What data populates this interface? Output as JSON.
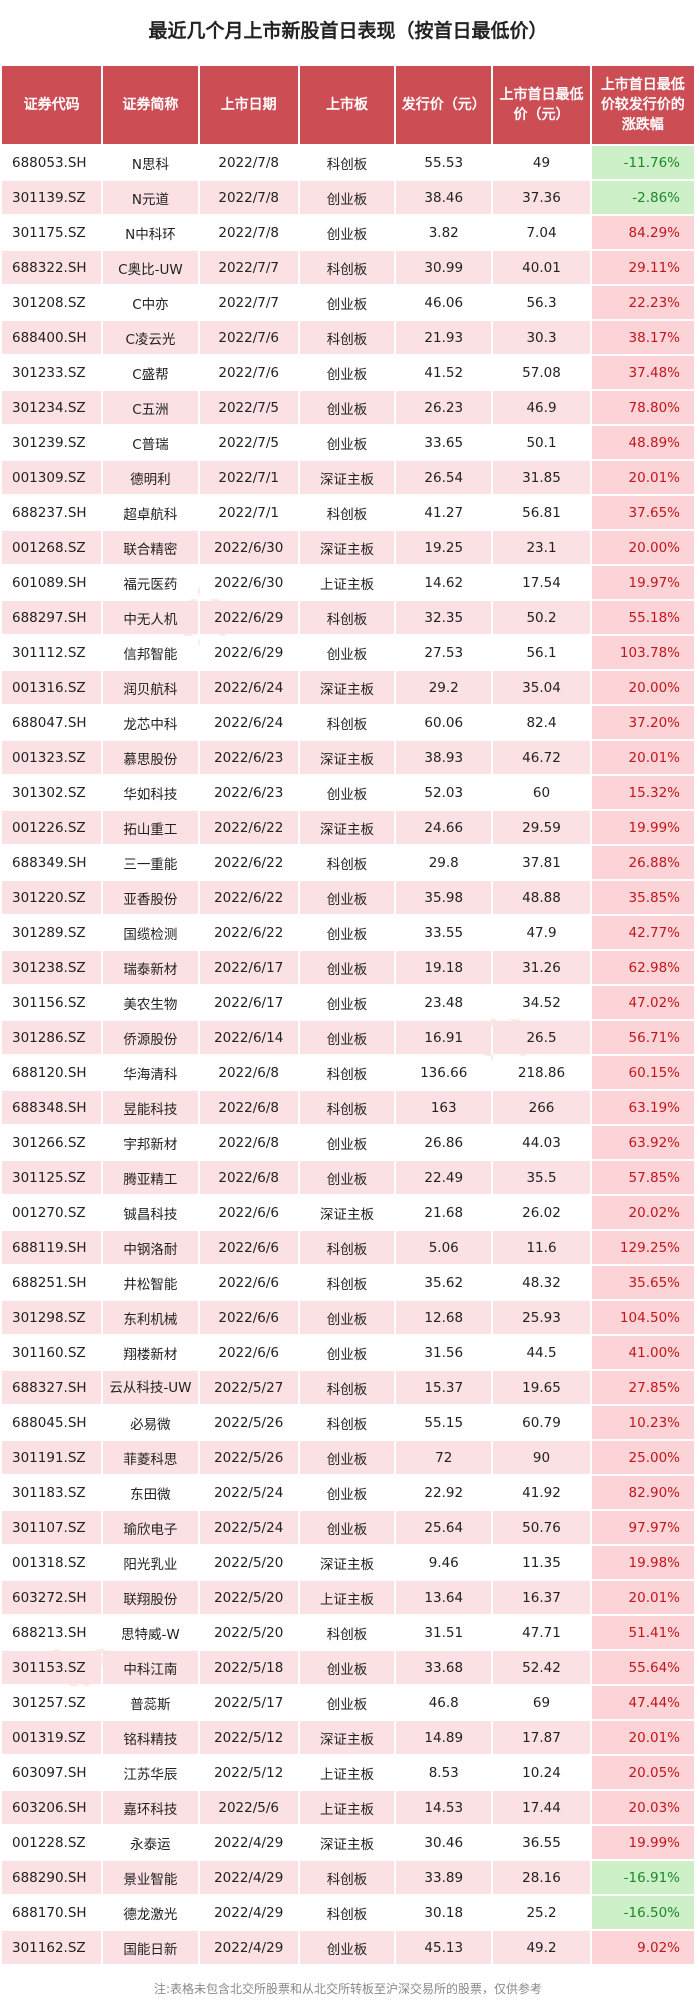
{
  "title": "最近几个月上市新股首日表现（按首日最低价）",
  "headers": [
    "证券代码",
    "证券简称",
    "上市日期",
    "上市板",
    "发行价（元）",
    "上市首日最低价（元）",
    "上市首日最低价较发行价的涨跌幅"
  ],
  "rows": [
    {
      "code": "688053.SH",
      "name": "N思科",
      "date": "2022/7/8",
      "board": "科创板",
      "issue": "55.53",
      "low": "49",
      "change": "-11.76%"
    },
    {
      "code": "301139.SZ",
      "name": "N元道",
      "date": "2022/7/8",
      "board": "创业板",
      "issue": "38.46",
      "low": "37.36",
      "change": "-2.86%"
    },
    {
      "code": "301175.SZ",
      "name": "N中科环",
      "date": "2022/7/8",
      "board": "创业板",
      "issue": "3.82",
      "low": "7.04",
      "change": "84.29%"
    },
    {
      "code": "688322.SH",
      "name": "C奥比-UW",
      "date": "2022/7/7",
      "board": "科创板",
      "issue": "30.99",
      "low": "40.01",
      "change": "29.11%"
    },
    {
      "code": "301208.SZ",
      "name": "C中亦",
      "date": "2022/7/7",
      "board": "创业板",
      "issue": "46.06",
      "low": "56.3",
      "change": "22.23%"
    },
    {
      "code": "688400.SH",
      "name": "C凌云光",
      "date": "2022/7/6",
      "board": "科创板",
      "issue": "21.93",
      "low": "30.3",
      "change": "38.17%"
    },
    {
      "code": "301233.SZ",
      "name": "C盛帮",
      "date": "2022/7/6",
      "board": "创业板",
      "issue": "41.52",
      "low": "57.08",
      "change": "37.48%"
    },
    {
      "code": "301234.SZ",
      "name": "C五洲",
      "date": "2022/7/5",
      "board": "创业板",
      "issue": "26.23",
      "low": "46.9",
      "change": "78.80%"
    },
    {
      "code": "301239.SZ",
      "name": "C普瑞",
      "date": "2022/7/5",
      "board": "创业板",
      "issue": "33.65",
      "low": "50.1",
      "change": "48.89%"
    },
    {
      "code": "001309.SZ",
      "name": "德明利",
      "date": "2022/7/1",
      "board": "深证主板",
      "issue": "26.54",
      "low": "31.85",
      "change": "20.01%"
    },
    {
      "code": "688237.SH",
      "name": "超卓航科",
      "date": "2022/7/1",
      "board": "科创板",
      "issue": "41.27",
      "low": "56.81",
      "change": "37.65%"
    },
    {
      "code": "001268.SZ",
      "name": "联合精密",
      "date": "2022/6/30",
      "board": "深证主板",
      "issue": "19.25",
      "low": "23.1",
      "change": "20.00%"
    },
    {
      "code": "601089.SH",
      "name": "福元医药",
      "date": "2022/6/30",
      "board": "上证主板",
      "issue": "14.62",
      "low": "17.54",
      "change": "19.97%"
    },
    {
      "code": "688297.SH",
      "name": "中无人机",
      "date": "2022/6/29",
      "board": "科创板",
      "issue": "32.35",
      "low": "50.2",
      "change": "55.18%"
    },
    {
      "code": "301112.SZ",
      "name": "信邦智能",
      "date": "2022/6/29",
      "board": "创业板",
      "issue": "27.53",
      "low": "56.1",
      "change": "103.78%"
    },
    {
      "code": "001316.SZ",
      "name": "润贝航科",
      "date": "2022/6/24",
      "board": "深证主板",
      "issue": "29.2",
      "low": "35.04",
      "change": "20.00%"
    },
    {
      "code": "688047.SH",
      "name": "龙芯中科",
      "date": "2022/6/24",
      "board": "科创板",
      "issue": "60.06",
      "low": "82.4",
      "change": "37.20%"
    },
    {
      "code": "001323.SZ",
      "name": "慕思股份",
      "date": "2022/6/23",
      "board": "深证主板",
      "issue": "38.93",
      "low": "46.72",
      "change": "20.01%"
    },
    {
      "code": "301302.SZ",
      "name": "华如科技",
      "date": "2022/6/23",
      "board": "创业板",
      "issue": "52.03",
      "low": "60",
      "change": "15.32%"
    },
    {
      "code": "001226.SZ",
      "name": "拓山重工",
      "date": "2022/6/22",
      "board": "深证主板",
      "issue": "24.66",
      "low": "29.59",
      "change": "19.99%"
    },
    {
      "code": "688349.SH",
      "name": "三一重能",
      "date": "2022/6/22",
      "board": "科创板",
      "issue": "29.8",
      "low": "37.81",
      "change": "26.88%"
    },
    {
      "code": "301220.SZ",
      "name": "亚香股份",
      "date": "2022/6/22",
      "board": "创业板",
      "issue": "35.98",
      "low": "48.88",
      "change": "35.85%"
    },
    {
      "code": "301289.SZ",
      "name": "国缆检测",
      "date": "2022/6/22",
      "board": "创业板",
      "issue": "33.55",
      "low": "47.9",
      "change": "42.77%"
    },
    {
      "code": "301238.SZ",
      "name": "瑞泰新材",
      "date": "2022/6/17",
      "board": "创业板",
      "issue": "19.18",
      "low": "31.26",
      "change": "62.98%"
    },
    {
      "code": "301156.SZ",
      "name": "美农生物",
      "date": "2022/6/17",
      "board": "创业板",
      "issue": "23.48",
      "low": "34.52",
      "change": "47.02%"
    },
    {
      "code": "301286.SZ",
      "name": "侨源股份",
      "date": "2022/6/14",
      "board": "创业板",
      "issue": "16.91",
      "low": "26.5",
      "change": "56.71%"
    },
    {
      "code": "688120.SH",
      "name": "华海清科",
      "date": "2022/6/8",
      "board": "科创板",
      "issue": "136.66",
      "low": "218.86",
      "change": "60.15%"
    },
    {
      "code": "688348.SH",
      "name": "昱能科技",
      "date": "2022/6/8",
      "board": "科创板",
      "issue": "163",
      "low": "266",
      "change": "63.19%"
    },
    {
      "code": "301266.SZ",
      "name": "宇邦新材",
      "date": "2022/6/8",
      "board": "创业板",
      "issue": "26.86",
      "low": "44.03",
      "change": "63.92%"
    },
    {
      "code": "301125.SZ",
      "name": "腾亚精工",
      "date": "2022/6/8",
      "board": "创业板",
      "issue": "22.49",
      "low": "35.5",
      "change": "57.85%"
    },
    {
      "code": "001270.SZ",
      "name": "铖昌科技",
      "date": "2022/6/6",
      "board": "深证主板",
      "issue": "21.68",
      "low": "26.02",
      "change": "20.02%"
    },
    {
      "code": "688119.SH",
      "name": "中钢洛耐",
      "date": "2022/6/6",
      "board": "科创板",
      "issue": "5.06",
      "low": "11.6",
      "change": "129.25%"
    },
    {
      "code": "688251.SH",
      "name": "井松智能",
      "date": "2022/6/6",
      "board": "科创板",
      "issue": "35.62",
      "low": "48.32",
      "change": "35.65%"
    },
    {
      "code": "301298.SZ",
      "name": "东利机械",
      "date": "2022/6/6",
      "board": "创业板",
      "issue": "12.68",
      "low": "25.93",
      "change": "104.50%"
    },
    {
      "code": "301160.SZ",
      "name": "翔楼新材",
      "date": "2022/6/6",
      "board": "创业板",
      "issue": "31.56",
      "low": "44.5",
      "change": "41.00%"
    },
    {
      "code": "688327.SH",
      "name": "云从科技-UW",
      "date": "2022/5/27",
      "board": "科创板",
      "issue": "15.37",
      "low": "19.65",
      "change": "27.85%"
    },
    {
      "code": "688045.SH",
      "name": "必易微",
      "date": "2022/5/26",
      "board": "科创板",
      "issue": "55.15",
      "low": "60.79",
      "change": "10.23%"
    },
    {
      "code": "301191.SZ",
      "name": "菲菱科思",
      "date": "2022/5/26",
      "board": "创业板",
      "issue": "72",
      "low": "90",
      "change": "25.00%"
    },
    {
      "code": "301183.SZ",
      "name": "东田微",
      "date": "2022/5/24",
      "board": "创业板",
      "issue": "22.92",
      "low": "41.92",
      "change": "82.90%"
    },
    {
      "code": "301107.SZ",
      "name": "瑜欣电子",
      "date": "2022/5/24",
      "board": "创业板",
      "issue": "25.64",
      "low": "50.76",
      "change": "97.97%"
    },
    {
      "code": "001318.SZ",
      "name": "阳光乳业",
      "date": "2022/5/20",
      "board": "深证主板",
      "issue": "9.46",
      "low": "11.35",
      "change": "19.98%"
    },
    {
      "code": "603272.SH",
      "name": "联翔股份",
      "date": "2022/5/20",
      "board": "上证主板",
      "issue": "13.64",
      "low": "16.37",
      "change": "20.01%"
    },
    {
      "code": "688213.SH",
      "name": "思特威-W",
      "date": "2022/5/20",
      "board": "科创板",
      "issue": "31.51",
      "low": "47.71",
      "change": "51.41%"
    },
    {
      "code": "301153.SZ",
      "name": "中科江南",
      "date": "2022/5/18",
      "board": "创业板",
      "issue": "33.68",
      "low": "52.42",
      "change": "55.64%"
    },
    {
      "code": "301257.SZ",
      "name": "普蕊斯",
      "date": "2022/5/17",
      "board": "创业板",
      "issue": "46.8",
      "low": "69",
      "change": "47.44%"
    },
    {
      "code": "001319.SZ",
      "name": "铭科精技",
      "date": "2022/5/12",
      "board": "深证主板",
      "issue": "14.89",
      "low": "17.87",
      "change": "20.01%"
    },
    {
      "code": "603097.SH",
      "name": "江苏华辰",
      "date": "2022/5/12",
      "board": "上证主板",
      "issue": "8.53",
      "low": "10.24",
      "change": "20.05%"
    },
    {
      "code": "603206.SH",
      "name": "嘉环科技",
      "date": "2022/5/6",
      "board": "上证主板",
      "issue": "14.53",
      "low": "17.44",
      "change": "20.03%"
    },
    {
      "code": "001228.SZ",
      "name": "永泰运",
      "date": "2022/4/29",
      "board": "深证主板",
      "issue": "30.46",
      "low": "36.55",
      "change": "19.99%"
    },
    {
      "code": "688290.SH",
      "name": "景业智能",
      "date": "2022/4/29",
      "board": "科创板",
      "issue": "33.89",
      "low": "28.16",
      "change": "-16.91%"
    },
    {
      "code": "688170.SH",
      "name": "德龙激光",
      "date": "2022/4/29",
      "board": "科创板",
      "issue": "30.18",
      "low": "25.2",
      "change": "-16.50%"
    },
    {
      "code": "301162.SZ",
      "name": "国能日新",
      "date": "2022/4/29",
      "board": "创业板",
      "issue": "45.13",
      "low": "49.2",
      "change": "9.02%"
    }
  ],
  "footnote": "注:表格未包含北交所股票和从北交所转板至沪深交易所的股票，仅供参考",
  "colors": {
    "header": "#cc4d54",
    "stripe": "#fbe1e3",
    "positive_bg": "#fcd3d6",
    "positive_text": "#c0171d",
    "negative_bg": "#cdf0c8",
    "negative_text": "#1a8a2a"
  }
}
